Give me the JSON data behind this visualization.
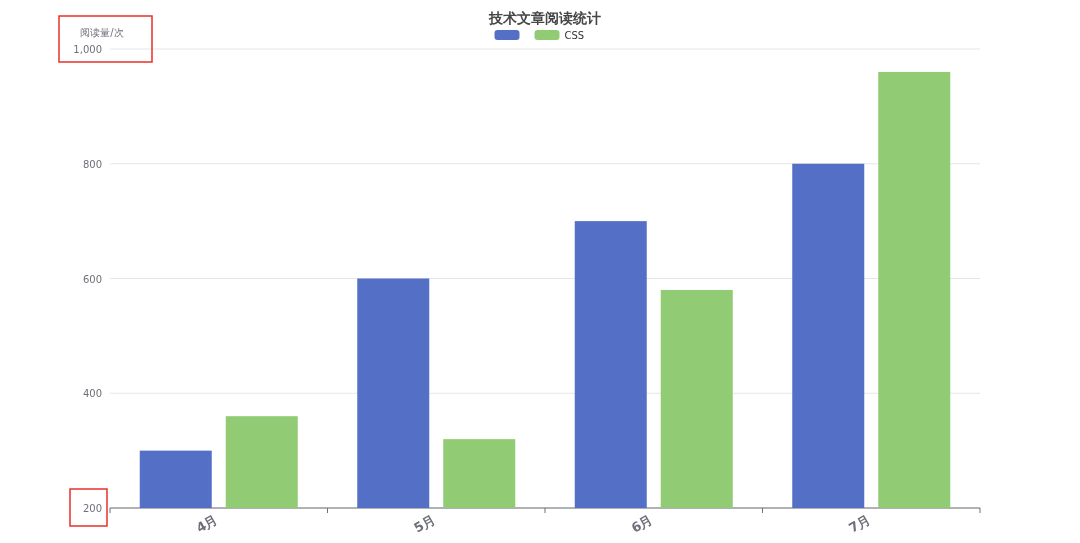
{
  "chart_data": {
    "type": "bar",
    "title": "技术文章阅读统计",
    "ylabel": "阅读量/次",
    "categories": [
      "4月",
      "5月",
      "6月",
      "7月"
    ],
    "series": [
      {
        "color": "#5470c6",
        "values": [
          300,
          600,
          700,
          800
        ]
      },
      {
        "name": "CSS",
        "color": "#91cc75",
        "values": [
          360,
          320,
          580,
          960
        ]
      }
    ],
    "ylim": [
      200,
      1000
    ],
    "yticks": [
      200,
      400,
      600,
      800,
      {
        "value": 1000,
        "label": "1,000"
      }
    ],
    "grid": "y",
    "legend": "top"
  }
}
